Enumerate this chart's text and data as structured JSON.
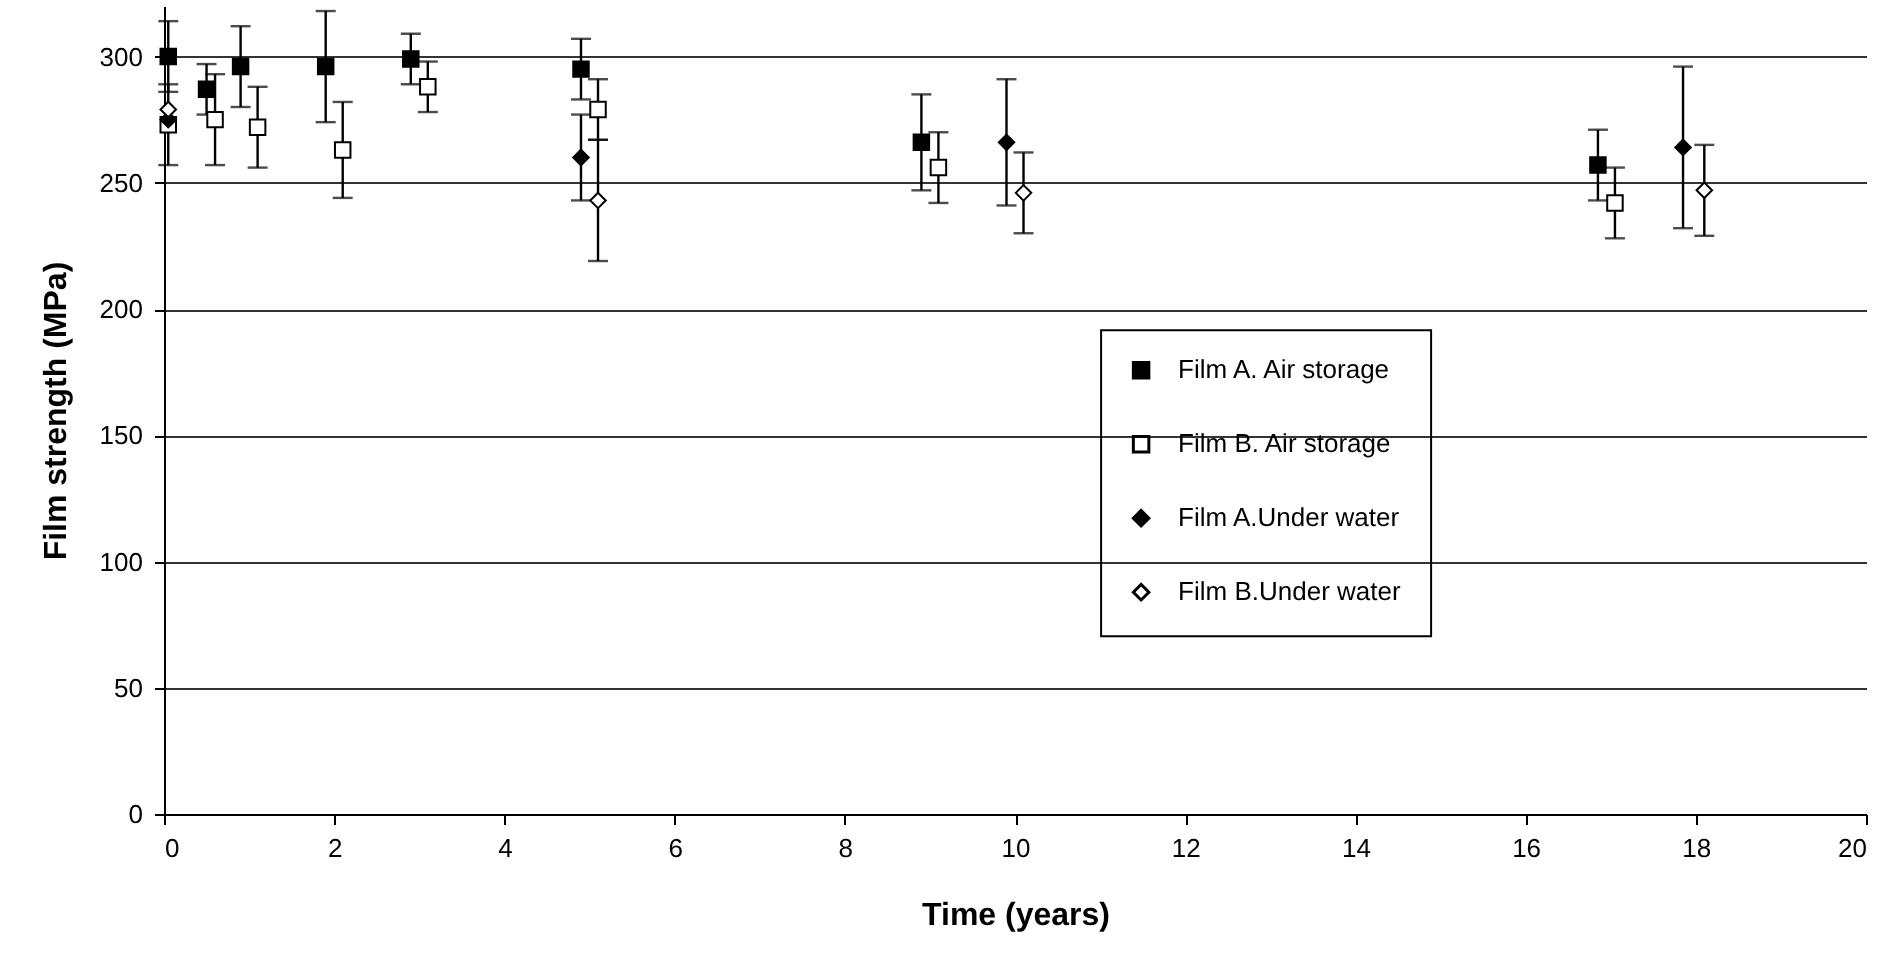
{
  "chart_data": {
    "type": "scatter",
    "xlabel": "Time   (years)",
    "ylabel": "Film strength   (MPa)",
    "xlim": [
      0,
      20
    ],
    "xticks": [
      0,
      2,
      4,
      6,
      8,
      10,
      12,
      14,
      16,
      18,
      20
    ],
    "ylim": [
      0,
      320
    ],
    "yticks": [
      0,
      50,
      100,
      150,
      200,
      250,
      300
    ],
    "grid": "y",
    "legend": "right",
    "series": [
      {
        "name": "Film A. Air storage",
        "color": "#000000",
        "marker": "square",
        "x": [
          0.05,
          0.5,
          0.9,
          1.9,
          2.9,
          4.9,
          8.9,
          16.85
        ],
        "values": [
          300,
          287,
          296,
          296,
          299,
          295,
          266,
          257
        ],
        "errors": [
          14,
          10,
          16,
          22,
          10,
          12,
          19,
          14
        ]
      },
      {
        "name": "Film B. Air storage",
        "color": "#ffffff",
        "marker": "square",
        "x": [
          0.05,
          0.6,
          1.1,
          2.1,
          3.1,
          5.1,
          9.1,
          17.05
        ],
        "values": [
          273,
          275,
          272,
          263,
          288,
          279,
          256,
          242
        ],
        "errors": [
          16,
          18,
          16,
          19,
          10,
          12,
          14,
          14
        ]
      },
      {
        "name": "Film A.Under water",
        "color": "#000000",
        "marker": "diamond",
        "x": [
          0.05,
          4.9,
          9.9,
          17.85
        ],
        "values": [
          275,
          260,
          266,
          264
        ],
        "errors": [
          null,
          17,
          25,
          32
        ]
      },
      {
        "name": "Film B.Under water",
        "color": "#ffffff",
        "marker": "diamond",
        "x": [
          0.05,
          5.1,
          10.1,
          18.1
        ],
        "values": [
          279,
          243,
          246,
          247
        ],
        "errors": [
          null,
          24,
          16,
          18
        ]
      }
    ]
  }
}
